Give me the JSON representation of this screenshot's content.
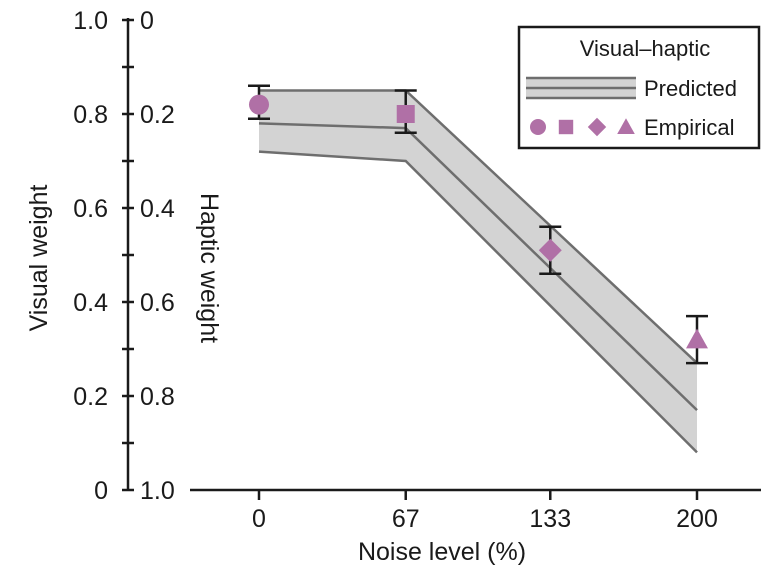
{
  "chart_data": {
    "type": "line",
    "title": "",
    "xlabel": "Noise level (%)",
    "ylabel_left": "Visual weight",
    "ylabel_right": "Haptic weight",
    "x_ticks": [
      0,
      67,
      133,
      200
    ],
    "x_tick_labels": [
      "0",
      "67",
      "133",
      "200"
    ],
    "y_ticks_visual": [
      0,
      0.2,
      0.4,
      0.6,
      0.8,
      1.0
    ],
    "y_tick_labels_visual": [
      "0",
      "0.2",
      "0.4",
      "0.6",
      "0.8",
      "1.0"
    ],
    "y_tick_labels_haptic": [
      "1.0",
      "0.8",
      "0.6",
      "0.4",
      "0.2",
      "0"
    ],
    "ylim": [
      0,
      1.0
    ],
    "grid": false,
    "legend": {
      "position": "top-right",
      "title": "Visual–haptic",
      "predicted_label": "Predicted",
      "empirical_label": "Empirical"
    },
    "predicted": {
      "x": [
        0,
        67,
        200
      ],
      "mean": [
        0.78,
        0.77,
        0.17
      ],
      "upper": [
        0.85,
        0.85,
        0.27
      ],
      "lower": [
        0.72,
        0.7,
        0.08
      ]
    },
    "empirical": [
      {
        "x": 0,
        "y": 0.82,
        "err_low": 0.79,
        "err_high": 0.86,
        "marker": "circle"
      },
      {
        "x": 67,
        "y": 0.8,
        "err_low": 0.76,
        "err_high": 0.85,
        "marker": "square"
      },
      {
        "x": 133,
        "y": 0.51,
        "err_low": 0.46,
        "err_high": 0.56,
        "marker": "diamond"
      },
      {
        "x": 200,
        "y": 0.32,
        "err_low": 0.27,
        "err_high": 0.37,
        "marker": "triangle"
      }
    ],
    "colors": {
      "band_fill": "#d3d3d3",
      "band_edge": "#6e6e6e",
      "marker": "#b070a6",
      "axis": "#1a1a1a"
    }
  }
}
